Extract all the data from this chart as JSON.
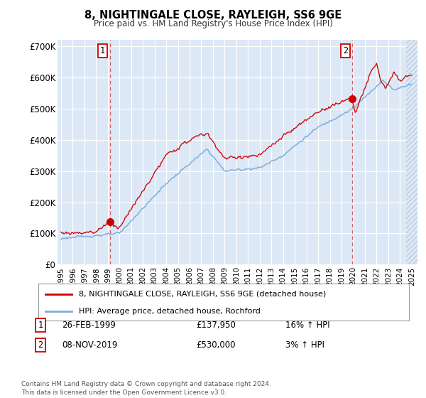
{
  "title": "8, NIGHTINGALE CLOSE, RAYLEIGH, SS6 9GE",
  "subtitle": "Price paid vs. HM Land Registry's House Price Index (HPI)",
  "background_color": "#ffffff",
  "plot_bg_color": "#dce8f5",
  "grid_color": "#c0d0e8",
  "legend_line1": "8, NIGHTINGALE CLOSE, RAYLEIGH, SS6 9GE (detached house)",
  "legend_line2": "HPI: Average price, detached house, Rochford",
  "transaction1_date": "26-FEB-1999",
  "transaction1_price": "£137,950",
  "transaction1_hpi": "16% ↑ HPI",
  "transaction2_date": "08-NOV-2019",
  "transaction2_price": "£530,000",
  "transaction2_hpi": "3% ↑ HPI",
  "footer": "Contains HM Land Registry data © Crown copyright and database right 2024.\nThis data is licensed under the Open Government Licence v3.0.",
  "red_color": "#cc0000",
  "blue_color": "#7aabdb",
  "ylim": [
    0,
    720000
  ],
  "yticks": [
    0,
    100000,
    200000,
    300000,
    400000,
    500000,
    600000,
    700000
  ],
  "ytick_labels": [
    "£0",
    "£100K",
    "£200K",
    "£300K",
    "£400K",
    "£500K",
    "£600K",
    "£700K"
  ]
}
